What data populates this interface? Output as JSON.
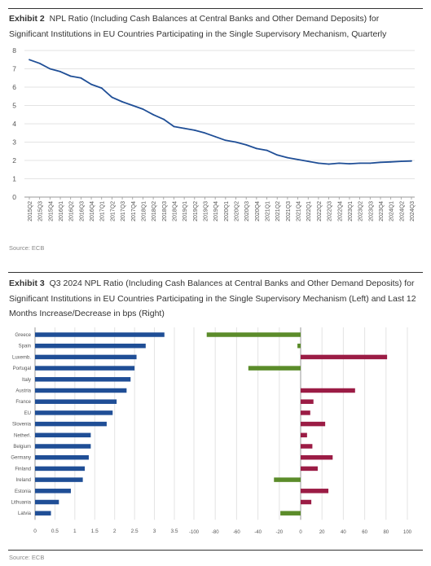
{
  "exhibit2": {
    "label": "Exhibit 2",
    "title": "NPL Ratio (Including Cash Balances at Central Banks and Other Demand Deposits) for Significant Institutions in EU Countries Participating in the Single Supervisory Mechanism, Quarterly",
    "source": "Source: ECB"
  },
  "exhibit3": {
    "label": "Exhibit 3",
    "title": "Q3 2024 NPL Ratio (Including Cash Balances at Central Banks and Other Demand Deposits) for Significant Institutions in EU Countries Participating in the Single Supervisory Mechanism (Left) and Last 12 Months Increase/Decrease in bps (Right)",
    "source": "Source: ECB"
  },
  "colors": {
    "line": "#1f4e96",
    "bar_left": "#1f4e96",
    "bar_pos": "#9b1c45",
    "bar_neg": "#5b8c2a",
    "grid": "#e3e3e3"
  },
  "chart_data": [
    {
      "type": "line",
      "title": "",
      "xlabel": "",
      "ylabel": "",
      "ylim": [
        0,
        8
      ],
      "yticks": [
        "0",
        "1",
        "2",
        "3",
        "4",
        "5",
        "6",
        "7",
        "8"
      ],
      "categories": [
        "2015Q2",
        "2015Q3",
        "2015Q4",
        "2016Q1",
        "2016Q2",
        "2016Q3",
        "2016Q4",
        "2017Q1",
        "2017Q2",
        "2017Q3",
        "2017Q4",
        "2018Q1",
        "2018Q2",
        "2018Q3",
        "2018Q4",
        "2019Q1",
        "2019Q2",
        "2019Q3",
        "2019Q4",
        "2020Q1",
        "2020Q2",
        "2020Q3",
        "2020Q4",
        "2021Q1",
        "2021Q2",
        "2021Q3",
        "2021Q4",
        "2022Q1",
        "2022Q2",
        "2022Q3",
        "2022Q4",
        "2023Q1",
        "2023Q2",
        "2023Q3",
        "2023Q4",
        "2024Q1",
        "2024Q2",
        "2024Q3"
      ],
      "values": [
        7.5,
        7.3,
        7.0,
        6.85,
        6.6,
        6.5,
        6.15,
        5.95,
        5.45,
        5.2,
        5.0,
        4.8,
        4.5,
        4.25,
        3.85,
        3.75,
        3.65,
        3.5,
        3.3,
        3.1,
        3.0,
        2.85,
        2.65,
        2.55,
        2.3,
        2.15,
        2.05,
        1.95,
        1.85,
        1.8,
        1.85,
        1.82,
        1.85,
        1.85,
        1.9,
        1.92,
        1.95,
        1.97
      ],
      "grid": true
    },
    {
      "type": "bar",
      "orientation": "horizontal",
      "title": "",
      "categories": [
        "Greece",
        "Spain",
        "Luxemb.",
        "Portugal",
        "Italy",
        "Austria",
        "France",
        "EU",
        "Slovenia",
        "Netherl.",
        "Belgium",
        "Germany",
        "Finland",
        "Ireland",
        "Estonia",
        "Lithuania",
        "Latvia"
      ],
      "panels": [
        {
          "name": "",
          "xlim": [
            0,
            3.5
          ],
          "xticks": [
            "0",
            "0.5",
            "1",
            "1.5",
            "2",
            "2.5",
            "3",
            "3.5"
          ],
          "values": [
            3.25,
            2.78,
            2.55,
            2.5,
            2.4,
            2.3,
            2.05,
            1.95,
            1.8,
            1.4,
            1.4,
            1.35,
            1.25,
            1.2,
            0.9,
            0.6,
            0.4
          ]
        },
        {
          "name": "",
          "xlim": [
            -100,
            100
          ],
          "xticks": [
            "-100",
            "-80",
            "-60",
            "-40",
            "-20",
            "0",
            "20",
            "40",
            "60",
            "80",
            "100"
          ],
          "values": [
            -88,
            -3,
            81,
            -49,
            0,
            51,
            12,
            9,
            23,
            6,
            11,
            30,
            16,
            -25,
            26,
            10,
            -19
          ]
        }
      ],
      "grid": true
    }
  ]
}
